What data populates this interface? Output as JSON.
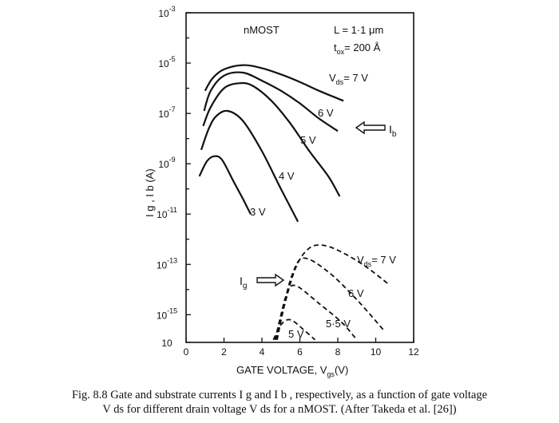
{
  "chart_data": {
    "type": "line",
    "annotations": {
      "device": "nMOST",
      "length": "L = 1·1 μm",
      "tox_prefix": "t",
      "tox_sub": "ox",
      "tox_value": "= 200 Å",
      "ib_label": "I",
      "ib_sub": "b",
      "ig_label": "I",
      "ig_sub": "g"
    },
    "xlabel": "GATE VOLTAGE, V",
    "xlabel_sub": "gs",
    "xlabel_unit": "(V)",
    "ylabel": "I g , I b (A)",
    "x_ticks": [
      "0",
      "2",
      "4",
      "6",
      "8",
      "10",
      "12"
    ],
    "y_ticks": [
      {
        "mantissa": "10",
        "exp": "-3"
      },
      {
        "mantissa": "10",
        "exp": "-5"
      },
      {
        "mantissa": "10",
        "exp": "-7"
      },
      {
        "mantissa": "10",
        "exp": "-9"
      },
      {
        "mantissa": "10",
        "exp": "-11"
      },
      {
        "mantissa": "10",
        "exp": "-13"
      },
      {
        "mantissa": "10",
        "exp": "-15"
      },
      {
        "mantissa": "10",
        "exp": ""
      }
    ],
    "xlim": [
      0,
      12
    ],
    "ylim_log10": [
      -16.1,
      -3
    ],
    "series": [
      {
        "group": "Ib",
        "name": "V",
        "name_sub": "ds",
        "name_tail": "= 7 V",
        "style": "solid",
        "points": [
          [
            1.0,
            -6.1
          ],
          [
            1.4,
            -5.6
          ],
          [
            2.0,
            -5.25
          ],
          [
            3.0,
            -5.08
          ],
          [
            4.0,
            -5.2
          ],
          [
            5.0,
            -5.45
          ],
          [
            6.0,
            -5.75
          ],
          [
            7.0,
            -6.1
          ],
          [
            8.3,
            -6.5
          ]
        ]
      },
      {
        "group": "Ib",
        "name": "6 V",
        "style": "solid",
        "points": [
          [
            0.95,
            -6.9
          ],
          [
            1.3,
            -6.1
          ],
          [
            2.0,
            -5.5
          ],
          [
            3.0,
            -5.38
          ],
          [
            4.0,
            -5.7
          ],
          [
            5.0,
            -6.1
          ],
          [
            6.0,
            -6.6
          ],
          [
            7.0,
            -7.2
          ],
          [
            8.0,
            -7.7
          ]
        ]
      },
      {
        "group": "Ib",
        "name": "5 V",
        "style": "solid",
        "points": [
          [
            0.9,
            -7.5
          ],
          [
            1.3,
            -6.75
          ],
          [
            2.0,
            -6.0
          ],
          [
            2.8,
            -5.8
          ],
          [
            3.5,
            -5.9
          ],
          [
            4.5,
            -6.5
          ],
          [
            5.5,
            -7.4
          ],
          [
            6.5,
            -8.5
          ],
          [
            7.5,
            -9.5
          ],
          [
            8.1,
            -10.3
          ]
        ]
      },
      {
        "group": "Ib",
        "name": "4 V",
        "style": "solid",
        "points": [
          [
            0.8,
            -8.45
          ],
          [
            1.2,
            -7.6
          ],
          [
            1.6,
            -7.1
          ],
          [
            2.2,
            -6.9
          ],
          [
            3.0,
            -7.3
          ],
          [
            4.0,
            -8.5
          ],
          [
            5.0,
            -10.0
          ],
          [
            5.9,
            -11.3
          ]
        ]
      },
      {
        "group": "Ib",
        "name": "3 V",
        "style": "solid",
        "points": [
          [
            0.7,
            -9.5
          ],
          [
            1.1,
            -8.9
          ],
          [
            1.5,
            -8.7
          ],
          [
            1.9,
            -8.85
          ],
          [
            2.5,
            -9.7
          ],
          [
            3.0,
            -10.4
          ],
          [
            3.4,
            -11.0
          ]
        ]
      },
      {
        "group": "Ig",
        "name": "V",
        "name_sub": "ds",
        "name_tail": "= 7 V",
        "style": "dashed",
        "points": [
          [
            4.8,
            -16.0
          ],
          [
            5.2,
            -14.6
          ],
          [
            5.8,
            -13.1
          ],
          [
            6.5,
            -12.35
          ],
          [
            7.3,
            -12.25
          ],
          [
            8.3,
            -12.55
          ],
          [
            9.5,
            -13.1
          ],
          [
            10.7,
            -13.8
          ]
        ]
      },
      {
        "group": "Ig",
        "name": "6 V",
        "style": "dashed",
        "points": [
          [
            4.75,
            -16.0
          ],
          [
            5.1,
            -14.8
          ],
          [
            5.6,
            -13.4
          ],
          [
            6.2,
            -12.75
          ],
          [
            7.5,
            -13.3
          ],
          [
            9.0,
            -14.4
          ],
          [
            10.4,
            -15.6
          ]
        ]
      },
      {
        "group": "Ig",
        "name": "5·5 V",
        "style": "dashed",
        "points": [
          [
            4.7,
            -16.0
          ],
          [
            5.0,
            -15.0
          ],
          [
            5.35,
            -14.1
          ],
          [
            5.8,
            -13.85
          ],
          [
            7.0,
            -14.55
          ],
          [
            8.2,
            -15.3
          ],
          [
            9.0,
            -16.0
          ]
        ]
      },
      {
        "group": "Ig",
        "name": "5 V",
        "style": "dashed",
        "points": [
          [
            4.6,
            -16.0
          ],
          [
            5.0,
            -15.4
          ],
          [
            5.5,
            -15.2
          ],
          [
            6.2,
            -15.6
          ],
          [
            6.8,
            -16.0
          ]
        ]
      }
    ]
  },
  "caption": {
    "line1": "Fig. 8.8 Gate and substrate currents I g and I b , respectively, as a function of gate voltage",
    "line2": "V ds for different drain voltage V ds for a nMOST. (After Takeda et al. [26])"
  }
}
